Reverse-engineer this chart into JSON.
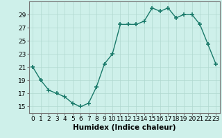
{
  "xlabel": "Humidex (Indice chaleur)",
  "ylabel": "",
  "x": [
    0,
    1,
    2,
    3,
    4,
    5,
    6,
    7,
    8,
    9,
    10,
    11,
    12,
    13,
    14,
    15,
    16,
    17,
    18,
    19,
    20,
    21,
    22,
    23
  ],
  "y": [
    21,
    19,
    17.5,
    17,
    16.5,
    15.5,
    15,
    15.5,
    18,
    21.5,
    23,
    27.5,
    27.5,
    27.5,
    28,
    30,
    29.5,
    30,
    28.5,
    29,
    29,
    27.5,
    24.5,
    21.5
  ],
  "ylim": [
    14,
    31
  ],
  "xlim": [
    -0.5,
    23.5
  ],
  "yticks": [
    15,
    17,
    19,
    21,
    23,
    25,
    27,
    29
  ],
  "xticks": [
    0,
    1,
    2,
    3,
    4,
    5,
    6,
    7,
    8,
    9,
    10,
    11,
    12,
    13,
    14,
    15,
    16,
    17,
    18,
    19,
    20,
    21,
    22,
    23
  ],
  "line_color": "#1a7a6a",
  "marker_color": "#1a7a6a",
  "bg_color": "#cef0ea",
  "grid_color": "#b0d8d0",
  "axes_color": "#555555",
  "tick_fontsize": 6.5,
  "label_fontsize": 7.5,
  "marker_size": 2.5,
  "line_width": 1.0
}
